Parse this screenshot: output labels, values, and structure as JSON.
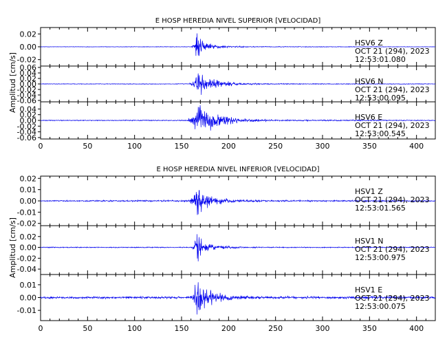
{
  "chart_data": [
    {
      "type": "line",
      "title": "E HOSP HEREDIA NIVEL SUPERIOR [VELOCIDAD]",
      "ylabel": "Amplitud [cm/s]",
      "xlim": [
        0,
        420
      ],
      "x_ticks": [
        "0",
        "50",
        "100",
        "150",
        "200",
        "250",
        "300",
        "350",
        "400"
      ],
      "traces": [
        {
          "station": "HSV6",
          "component": "Z",
          "date": "OCT 21 (294), 2023",
          "time": "12:53:01.080",
          "ylim": [
            -0.03,
            0.03
          ],
          "y_ticks": [
            "0.02",
            "0.00",
            "-0.02"
          ],
          "color": "#0000ee",
          "noise": 0.0004,
          "peak": 0.027,
          "envelope": [
            [
              0,
              0.0004
            ],
            [
              160,
              0.0005
            ],
            [
              164,
              0.006
            ],
            [
              166,
              0.027
            ],
            [
              172,
              0.01
            ],
            [
              185,
              0.004
            ],
            [
              200,
              0.0015
            ],
            [
              230,
              0.0007
            ],
            [
              420,
              0.0004
            ]
          ]
        },
        {
          "station": "HSV6",
          "component": "N",
          "date": "OCT 21 (294), 2023",
          "time": "12:53:00.095",
          "ylim": [
            -0.065,
            0.065
          ],
          "y_ticks": [
            "0.06",
            "0.04",
            "0.02",
            "0.00",
            "-0.02",
            "-0.04",
            "-0.06"
          ],
          "color": "#0000ee",
          "noise": 0.0012,
          "peak": 0.055,
          "envelope": [
            [
              0,
              0.0012
            ],
            [
              158,
              0.0015
            ],
            [
              164,
              0.02
            ],
            [
              168,
              0.05
            ],
            [
              175,
              0.03
            ],
            [
              190,
              0.015
            ],
            [
              210,
              0.005
            ],
            [
              240,
              0.002
            ],
            [
              420,
              0.0012
            ]
          ]
        },
        {
          "station": "HSV6",
          "component": "E",
          "date": "OCT 21 (294), 2023",
          "time": "12:53:00.545",
          "ylim": [
            -0.065,
            0.065
          ],
          "y_ticks": [
            "0.04",
            "0.02",
            "0.00",
            "-0.02",
            "-0.04",
            "-0.06"
          ],
          "color": "#0000ee",
          "noise": 0.0015,
          "peak": 0.06,
          "envelope": [
            [
              0,
              0.0015
            ],
            [
              156,
              0.002
            ],
            [
              163,
              0.025
            ],
            [
              170,
              0.06
            ],
            [
              180,
              0.04
            ],
            [
              195,
              0.02
            ],
            [
              215,
              0.008
            ],
            [
              250,
              0.003
            ],
            [
              420,
              0.0015
            ]
          ]
        }
      ]
    },
    {
      "type": "line",
      "title": "E HOSP HEREDIA NIVEL INFERIOR [VELOCIDAD]",
      "ylabel": "Amplitud [cm/s]",
      "xlim": [
        0,
        420
      ],
      "x_ticks": [
        "0",
        "50",
        "100",
        "150",
        "200",
        "250",
        "300",
        "350",
        "400"
      ],
      "traces": [
        {
          "station": "HSV1",
          "component": "Z",
          "date": "OCT 21 (294), 2023",
          "time": "12:53:01.565",
          "ylim": [
            -0.022,
            0.022
          ],
          "y_ticks": [
            "0.02",
            "0.01",
            "0.00",
            "-0.01",
            "-0.02"
          ],
          "color": "#0000ee",
          "noise": 0.0006,
          "peak": 0.02,
          "envelope": [
            [
              0,
              0.0006
            ],
            [
              158,
              0.0008
            ],
            [
              163,
              0.006
            ],
            [
              166,
              0.02
            ],
            [
              172,
              0.009
            ],
            [
              185,
              0.004
            ],
            [
              205,
              0.0015
            ],
            [
              240,
              0.0008
            ],
            [
              420,
              0.0006
            ]
          ]
        },
        {
          "station": "HSV1",
          "component": "N",
          "date": "OCT 21 (294), 2023",
          "time": "12:53:00.975",
          "ylim": [
            -0.05,
            0.04
          ],
          "y_ticks": [
            "0.02",
            "0.00",
            "-0.02",
            "-0.04"
          ],
          "color": "#0000ee",
          "noise": 0.0009,
          "peak": 0.04,
          "envelope": [
            [
              0,
              0.0009
            ],
            [
              160,
              0.001
            ],
            [
              164,
              0.008
            ],
            [
              166,
              0.04
            ],
            [
              172,
              0.012
            ],
            [
              185,
              0.005
            ],
            [
              205,
              0.002
            ],
            [
              240,
              0.001
            ],
            [
              420,
              0.0009
            ]
          ]
        },
        {
          "station": "HSV1",
          "component": "E",
          "date": "OCT 21 (294), 2023",
          "time": "12:53:00.075",
          "ylim": [
            -0.018,
            0.018
          ],
          "y_ticks": [
            "0.01",
            "0.00",
            "-0.01"
          ],
          "color": "#0000ee",
          "noise": 0.0009,
          "peak": 0.016,
          "envelope": [
            [
              0,
              0.0009
            ],
            [
              158,
              0.001
            ],
            [
              163,
              0.006
            ],
            [
              166,
              0.016
            ],
            [
              172,
              0.01
            ],
            [
              185,
              0.005
            ],
            [
              205,
              0.002
            ],
            [
              240,
              0.0012
            ],
            [
              420,
              0.0009
            ]
          ]
        }
      ]
    }
  ]
}
